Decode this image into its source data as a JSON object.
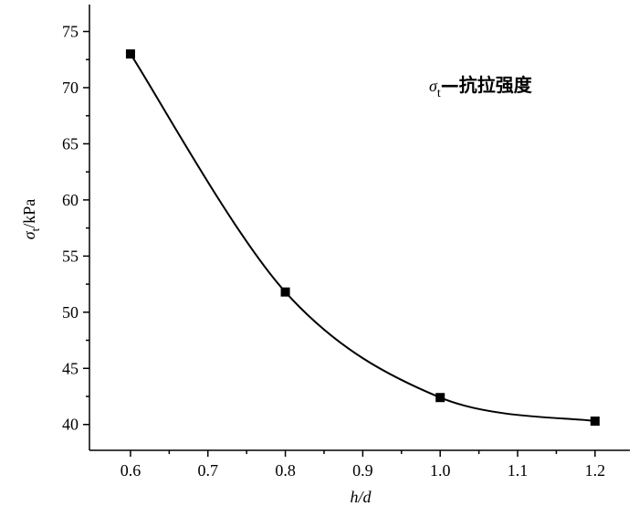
{
  "chart_data": {
    "type": "line",
    "smooth": true,
    "x": [
      0.6,
      0.8,
      1.0,
      1.2
    ],
    "series": [
      {
        "color": "#000000",
        "values": [
          73,
          51.8,
          42.4,
          40.3
        ]
      }
    ],
    "xlim": [
      0.547,
      1.245
    ],
    "ylim": [
      37.7,
      77.4
    ],
    "xticks": [
      0.6,
      0.7,
      0.8,
      0.9,
      {
        "value": 1.0,
        "label": "1.0"
      },
      1.1,
      1.2
    ],
    "yticks": [
      40,
      45,
      50,
      55,
      60,
      65,
      70,
      75
    ],
    "xlabel": "h/d",
    "ylabel": {
      "symbol": "σ",
      "subscript": "t",
      "unit": "/kPa"
    },
    "annotation": {
      "symbol": "σ",
      "subscript": "t",
      "text": "—抗拉强度"
    }
  }
}
